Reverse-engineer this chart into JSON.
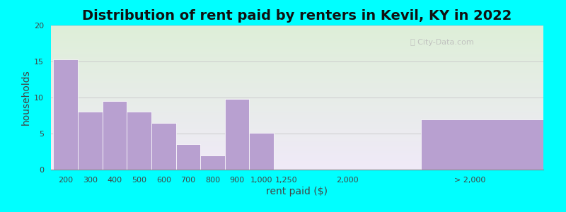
{
  "title": "Distribution of rent paid by renters in Kevil, KY in 2022",
  "xlabel": "rent paid ($)",
  "ylabel": "households",
  "background_outer": "#00FFFF",
  "background_inner_top": "#deefd8",
  "background_inner_bottom": "#f0eaf8",
  "bar_color": "#b8a0d0",
  "bar_edgecolor": "#ffffff",
  "ylim": [
    0,
    20
  ],
  "yticks": [
    0,
    5,
    10,
    15,
    20
  ],
  "bar_labels": [
    "200",
    "300",
    "400",
    "500",
    "600",
    "700",
    "800",
    "900",
    "1,000",
    "1,250",
    "2,000",
    "> 2,000"
  ],
  "bar_values": [
    15.3,
    8.0,
    9.5,
    8.0,
    6.5,
    3.5,
    2.0,
    9.8,
    5.1,
    0.0,
    0.0,
    7.0
  ],
  "bar_positions": [
    0,
    1,
    2,
    3,
    4,
    5,
    6,
    7,
    8,
    9,
    12,
    15
  ],
  "bar_widths": [
    1,
    1,
    1,
    1,
    1,
    1,
    1,
    1,
    1,
    1,
    1,
    5
  ],
  "tick_positions": [
    0.5,
    1.5,
    2.5,
    3.5,
    4.5,
    5.5,
    6.5,
    7.5,
    8.5,
    9.5,
    12,
    17
  ],
  "tick_labels": [
    "200",
    "300",
    "400",
    "500",
    "600",
    "700",
    "800",
    "900",
    "1,000",
    "1,250",
    "2,000",
    "> 2,000"
  ],
  "xlim": [
    -0.1,
    20
  ],
  "title_fontsize": 14,
  "axis_label_fontsize": 10,
  "tick_fontsize": 8
}
